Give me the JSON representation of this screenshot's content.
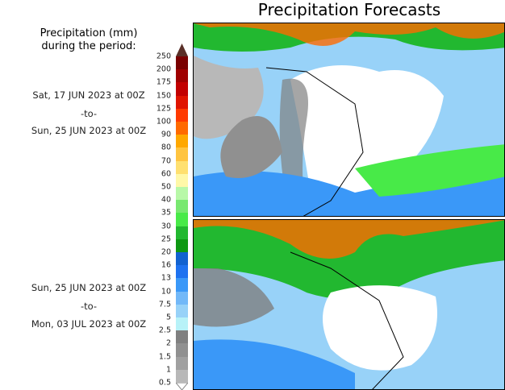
{
  "title": "Precipitation Forecasts",
  "legend": {
    "title_line1": "Precipitation (mm)",
    "title_line2": "during the period:",
    "ticks": [
      "250",
      "200",
      "175",
      "150",
      "125",
      "100",
      "90",
      "80",
      "70",
      "60",
      "50",
      "40",
      "35",
      "30",
      "25",
      "20",
      "16",
      "13",
      "10",
      "7.5",
      "5",
      "2.5",
      "2",
      "1.5",
      "1",
      "0.5"
    ],
    "colors": [
      "#7a0000",
      "#a00000",
      "#c20000",
      "#e01400",
      "#ff3a00",
      "#ff6a00",
      "#ffa800",
      "#ffc440",
      "#ffe070",
      "#fff8a8",
      "#b8f8a8",
      "#78e870",
      "#48ea48",
      "#22b830",
      "#0e9812",
      "#1262d0",
      "#1e72f0",
      "#3a98f8",
      "#72b8f8",
      "#98d2f8",
      "#b8f2f8",
      "#808080",
      "#909090",
      "#a0a0a0",
      "#b8b8b8"
    ]
  },
  "periods": [
    {
      "start": "Sat, 17 JUN 2023 at 00Z",
      "sep": "-to-",
      "end": "Sun, 25 JUN 2023 at 00Z"
    },
    {
      "start": "Sun, 25 JUN 2023 at 00Z",
      "sep": "-to-",
      "end": "Mon, 03 JUL 2023 at 00Z"
    }
  ]
}
